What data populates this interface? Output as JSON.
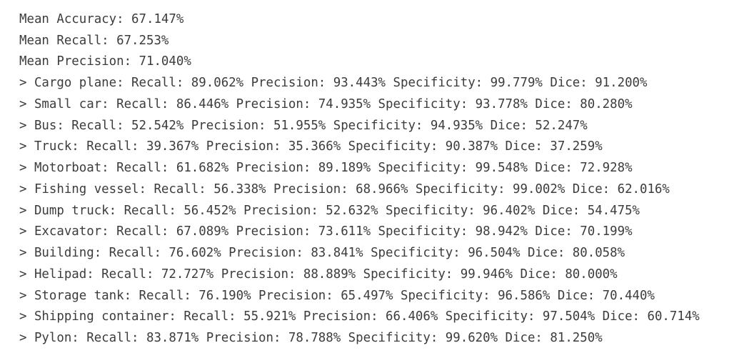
{
  "lines": [
    "Mean Accuracy: 67.147%",
    "Mean Recall: 67.253%",
    "Mean Precision: 71.040%",
    "> Cargo plane: Recall: 89.062% Precision: 93.443% Specificity: 99.779% Dice: 91.200%",
    "> Small car: Recall: 86.446% Precision: 74.935% Specificity: 93.778% Dice: 80.280%",
    "> Bus: Recall: 52.542% Precision: 51.955% Specificity: 94.935% Dice: 52.247%",
    "> Truck: Recall: 39.367% Precision: 35.366% Specificity: 90.387% Dice: 37.259%",
    "> Motorboat: Recall: 61.682% Precision: 89.189% Specificity: 99.548% Dice: 72.928%",
    "> Fishing vessel: Recall: 56.338% Precision: 68.966% Specificity: 99.002% Dice: 62.016%",
    "> Dump truck: Recall: 56.452% Precision: 52.632% Specificity: 96.402% Dice: 54.475%",
    "> Excavator: Recall: 67.089% Precision: 73.611% Specificity: 98.942% Dice: 70.199%",
    "> Building: Recall: 76.602% Precision: 83.841% Specificity: 96.504% Dice: 80.058%",
    "> Helipad: Recall: 72.727% Precision: 88.889% Specificity: 99.946% Dice: 80.000%",
    "> Storage tank: Recall: 76.190% Precision: 65.497% Specificity: 96.586% Dice: 70.440%",
    "> Shipping container: Recall: 55.921% Precision: 66.406% Specificity: 97.504% Dice: 60.714%",
    "> Pylon: Recall: 83.871% Precision: 78.788% Specificity: 99.620% Dice: 81.250%"
  ]
}
